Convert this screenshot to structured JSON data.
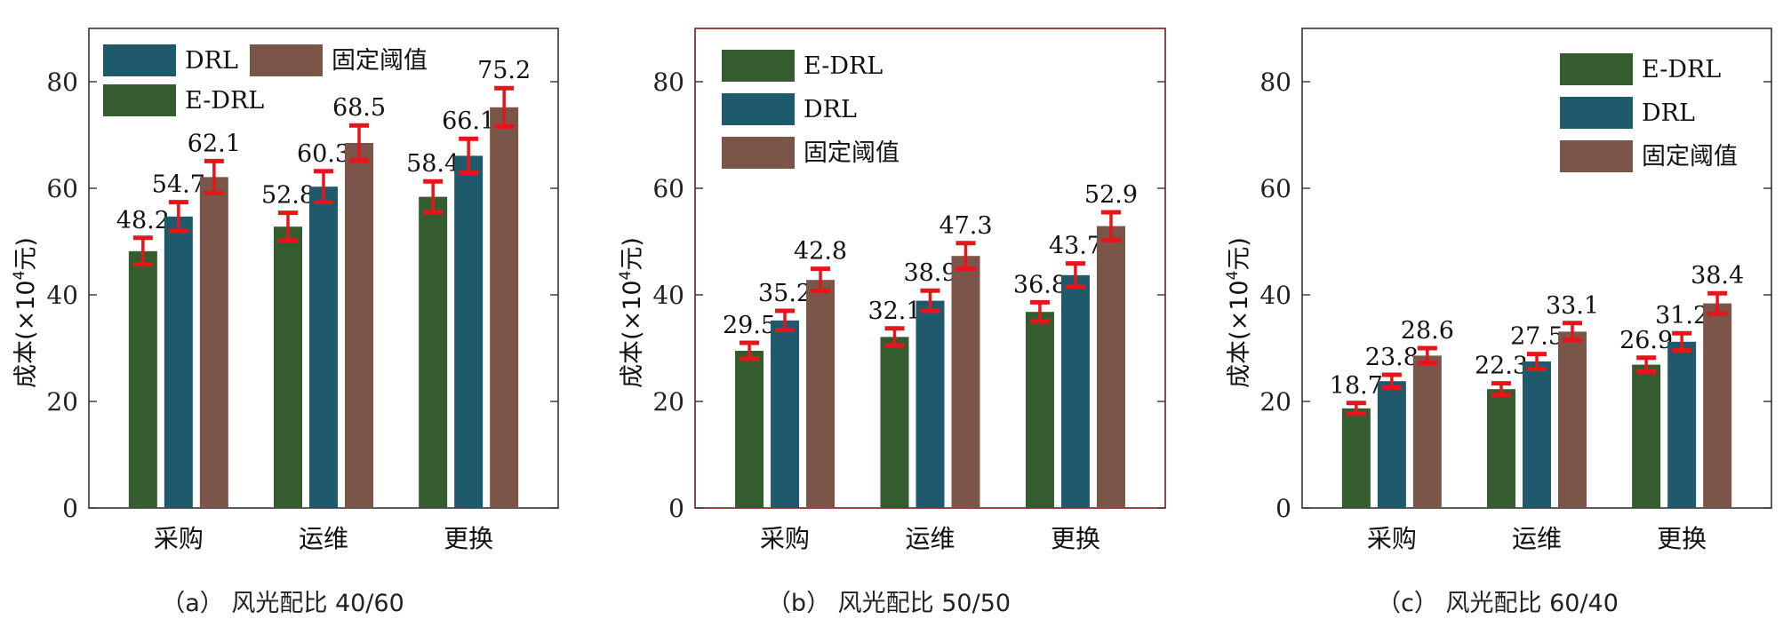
{
  "chart_data": [
    {
      "type": "bar",
      "caption": "（a）    风光配比 40/60",
      "categories": [
        "采购",
        "运维",
        "更换"
      ],
      "ylabel_main": "成本(×10",
      "ylabel_sup": "4",
      "ylabel_tail": "元)",
      "ylim": [
        0,
        90
      ],
      "yticks": [
        0,
        20,
        40,
        60,
        80
      ],
      "grid": false,
      "legend_position": "top-left",
      "legend_layout": "two-column",
      "series": [
        {
          "name": "E-DRL",
          "color": "#345c2f",
          "values": [
            48.2,
            52.8,
            58.4
          ],
          "errors": [
            2.5,
            2.6,
            2.9
          ]
        },
        {
          "name": "DRL",
          "color": "#1e5a6c",
          "values": [
            54.7,
            60.3,
            66.1
          ],
          "errors": [
            2.7,
            2.9,
            3.2
          ]
        },
        {
          "name": "固定阈值",
          "color": "#7b5548",
          "values": [
            62.1,
            68.5,
            75.2
          ],
          "errors": [
            3.0,
            3.3,
            3.6
          ]
        }
      ],
      "error_bar_color": "#e8141a",
      "frame_color": "#333333"
    },
    {
      "type": "bar",
      "caption": "（b）    风光配比 50/50",
      "categories": [
        "采购",
        "运维",
        "更换"
      ],
      "ylabel_main": "成本(×10",
      "ylabel_sup": "4",
      "ylabel_tail": "元)",
      "ylim": [
        0,
        90
      ],
      "yticks": [
        0,
        20,
        40,
        60,
        80
      ],
      "grid": false,
      "legend_position": "top-left",
      "legend_layout": "one-column",
      "series": [
        {
          "name": "E-DRL",
          "color": "#345c2f",
          "values": [
            29.5,
            32.1,
            36.8
          ],
          "errors": [
            1.5,
            1.6,
            1.8
          ]
        },
        {
          "name": "DRL",
          "color": "#1e5a6c",
          "values": [
            35.2,
            38.9,
            43.7
          ],
          "errors": [
            1.8,
            1.9,
            2.2
          ]
        },
        {
          "name": "固定阈值",
          "color": "#7b5548",
          "values": [
            42.8,
            47.3,
            52.9
          ],
          "errors": [
            2.1,
            2.4,
            2.6
          ]
        }
      ],
      "error_bar_color": "#e8141a",
      "frame_color": "#7a1a1a"
    },
    {
      "type": "bar",
      "caption": "（c）    风光配比 60/40",
      "categories": [
        "采购",
        "运维",
        "更换"
      ],
      "ylabel_main": "成本(×10",
      "ylabel_sup": "4",
      "ylabel_tail": "元)",
      "ylim": [
        0,
        90
      ],
      "yticks": [
        0,
        20,
        40,
        60,
        80
      ],
      "grid": false,
      "legend_position": "top-right",
      "legend_layout": "one-column",
      "series": [
        {
          "name": "E-DRL",
          "color": "#345c2f",
          "values": [
            18.7,
            22.3,
            26.9
          ],
          "errors": [
            1.0,
            1.1,
            1.3
          ]
        },
        {
          "name": "DRL",
          "color": "#1e5a6c",
          "values": [
            23.8,
            27.5,
            31.2
          ],
          "errors": [
            1.2,
            1.4,
            1.6
          ]
        },
        {
          "name": "固定阈值",
          "color": "#7b5548",
          "values": [
            28.6,
            33.1,
            38.4
          ],
          "errors": [
            1.4,
            1.6,
            1.9
          ]
        }
      ],
      "error_bar_color": "#e8141a",
      "frame_color": "#333333"
    }
  ]
}
